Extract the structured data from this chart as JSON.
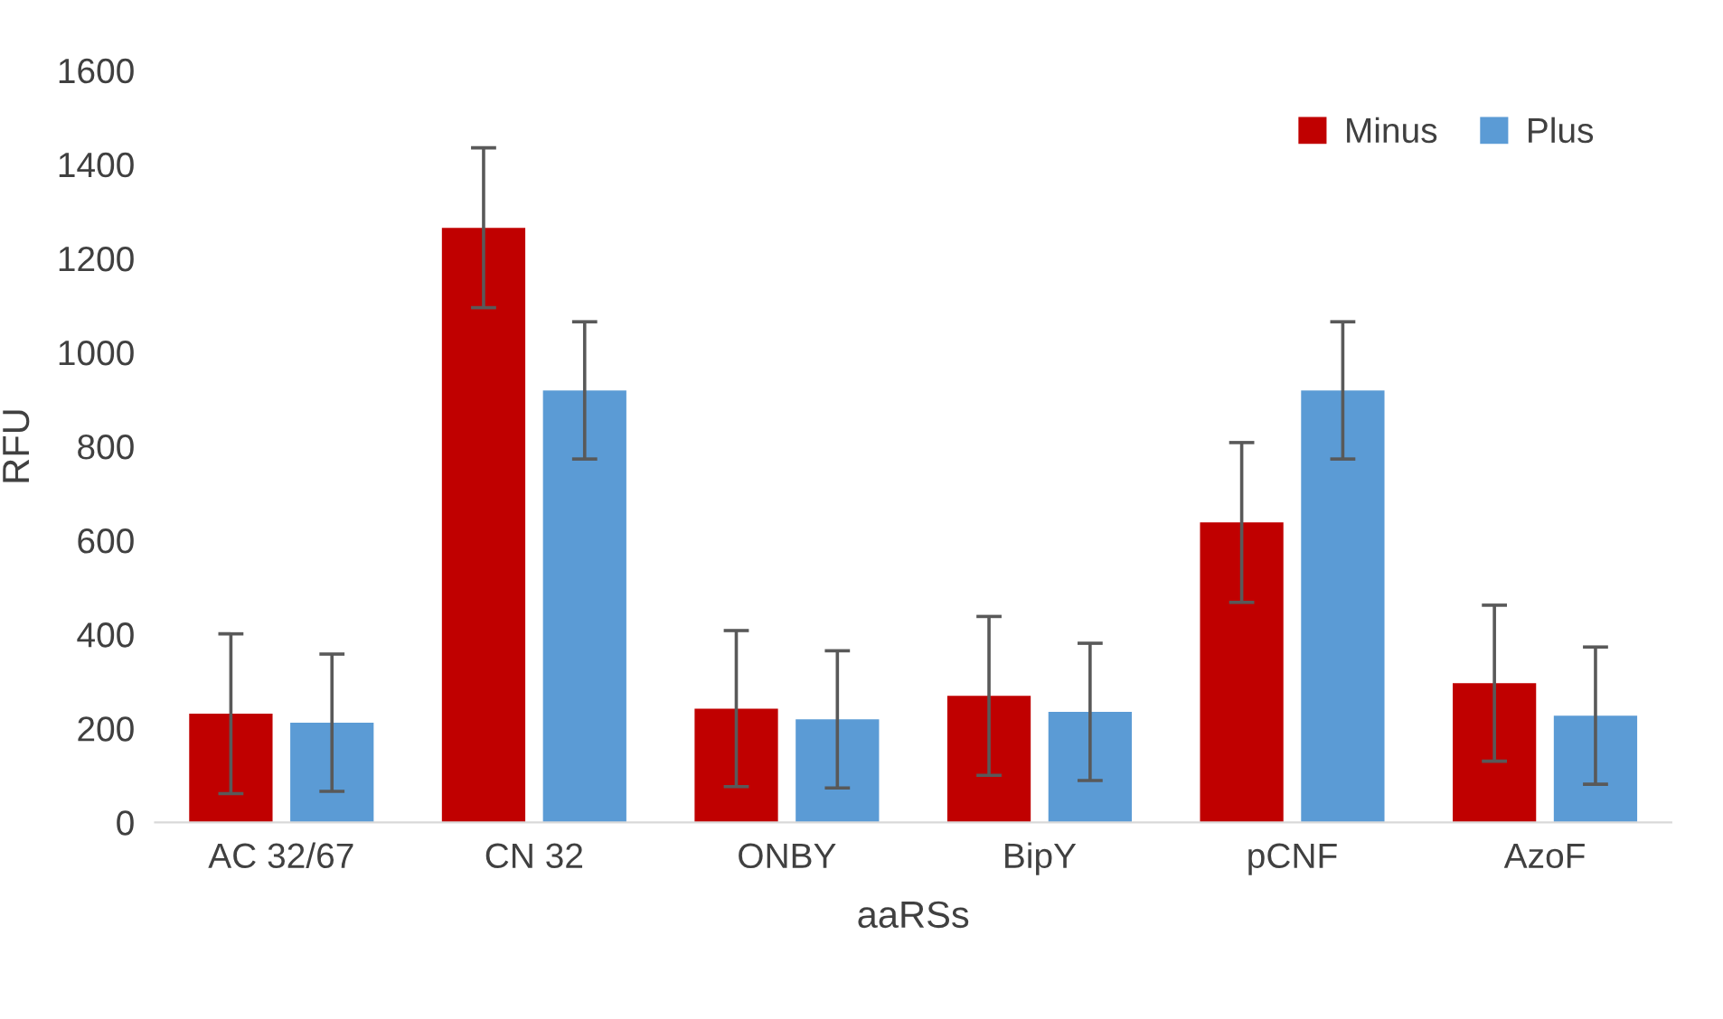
{
  "chart_data": {
    "type": "bar",
    "xlabel": "aaRSs",
    "ylabel": "RFU",
    "categories": [
      "AC 32/67",
      "CN 32",
      "ONBY",
      "BipY",
      "pCNF",
      "AzoF"
    ],
    "series": [
      {
        "name": "Minus",
        "color": "#c00000",
        "values": [
          231,
          1265,
          242,
          269,
          638,
          296
        ],
        "errors": [
          170,
          170,
          166,
          169,
          170,
          166
        ]
      },
      {
        "name": "Plus",
        "color": "#5b9bd5",
        "values": [
          212,
          919,
          219,
          235,
          919,
          227
        ],
        "errors": [
          146,
          146,
          146,
          146,
          146,
          146
        ]
      }
    ],
    "ylim": [
      0,
      1600
    ],
    "yticks": [
      0,
      200,
      400,
      600,
      800,
      1000,
      1200,
      1400,
      1600
    ],
    "grid": false,
    "legend": "top right"
  }
}
